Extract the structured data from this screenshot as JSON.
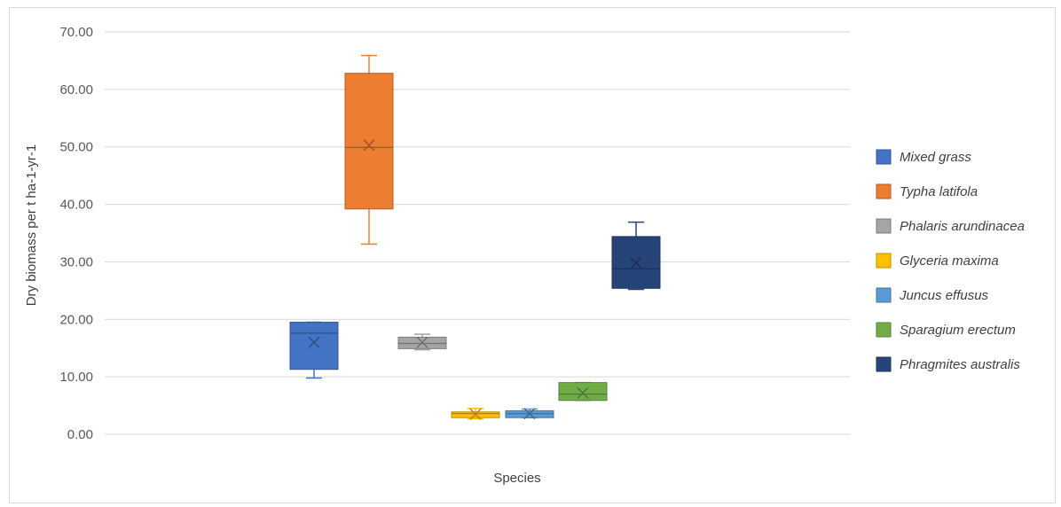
{
  "chart_data": {
    "type": "box",
    "xlabel": "Species",
    "ylabel": "Dry biomass per t ha-1-yr-1",
    "ylim": [
      0,
      70
    ],
    "yticks": [
      "0.00",
      "10.00",
      "20.00",
      "30.00",
      "40.00",
      "50.00",
      "60.00",
      "70.00"
    ],
    "grid": true,
    "legend_position": "right",
    "series": [
      {
        "name": "Mixed grass",
        "color": "#4472C4",
        "min": 9.8,
        "q1": 11.3,
        "median": 17.6,
        "q3": 19.5,
        "max": 19.5,
        "mean": 16.0
      },
      {
        "name": "Typha latifola",
        "color": "#ED7D31",
        "min": 33.1,
        "q1": 39.2,
        "median": 49.9,
        "q3": 62.8,
        "max": 65.9,
        "mean": 50.3
      },
      {
        "name": "Phalaris arundinacea",
        "color": "#A5A5A5",
        "min": 14.7,
        "q1": 14.9,
        "median": 15.8,
        "q3": 16.9,
        "max": 17.4,
        "mean": 16.0
      },
      {
        "name": "Glyceria maxima",
        "color": "#FFC000",
        "min": 2.7,
        "q1": 2.9,
        "median": 3.6,
        "q3": 3.9,
        "max": 4.5,
        "mean": 3.5
      },
      {
        "name": "Juncus effusus",
        "color": "#5B9BD5",
        "min": 2.9,
        "q1": 2.9,
        "median": 3.6,
        "q3": 4.1,
        "max": 4.4,
        "mean": 3.6
      },
      {
        "name": "Sparagium erectum",
        "color": "#70AD47",
        "min": 5.9,
        "q1": 5.9,
        "median": 7.0,
        "q3": 9.0,
        "max": 9.0,
        "mean": 7.2
      },
      {
        "name": "Phragmites australis",
        "color": "#264478",
        "min": 25.2,
        "q1": 25.4,
        "median": 28.8,
        "q3": 34.4,
        "max": 36.9,
        "mean": 29.8
      }
    ]
  }
}
